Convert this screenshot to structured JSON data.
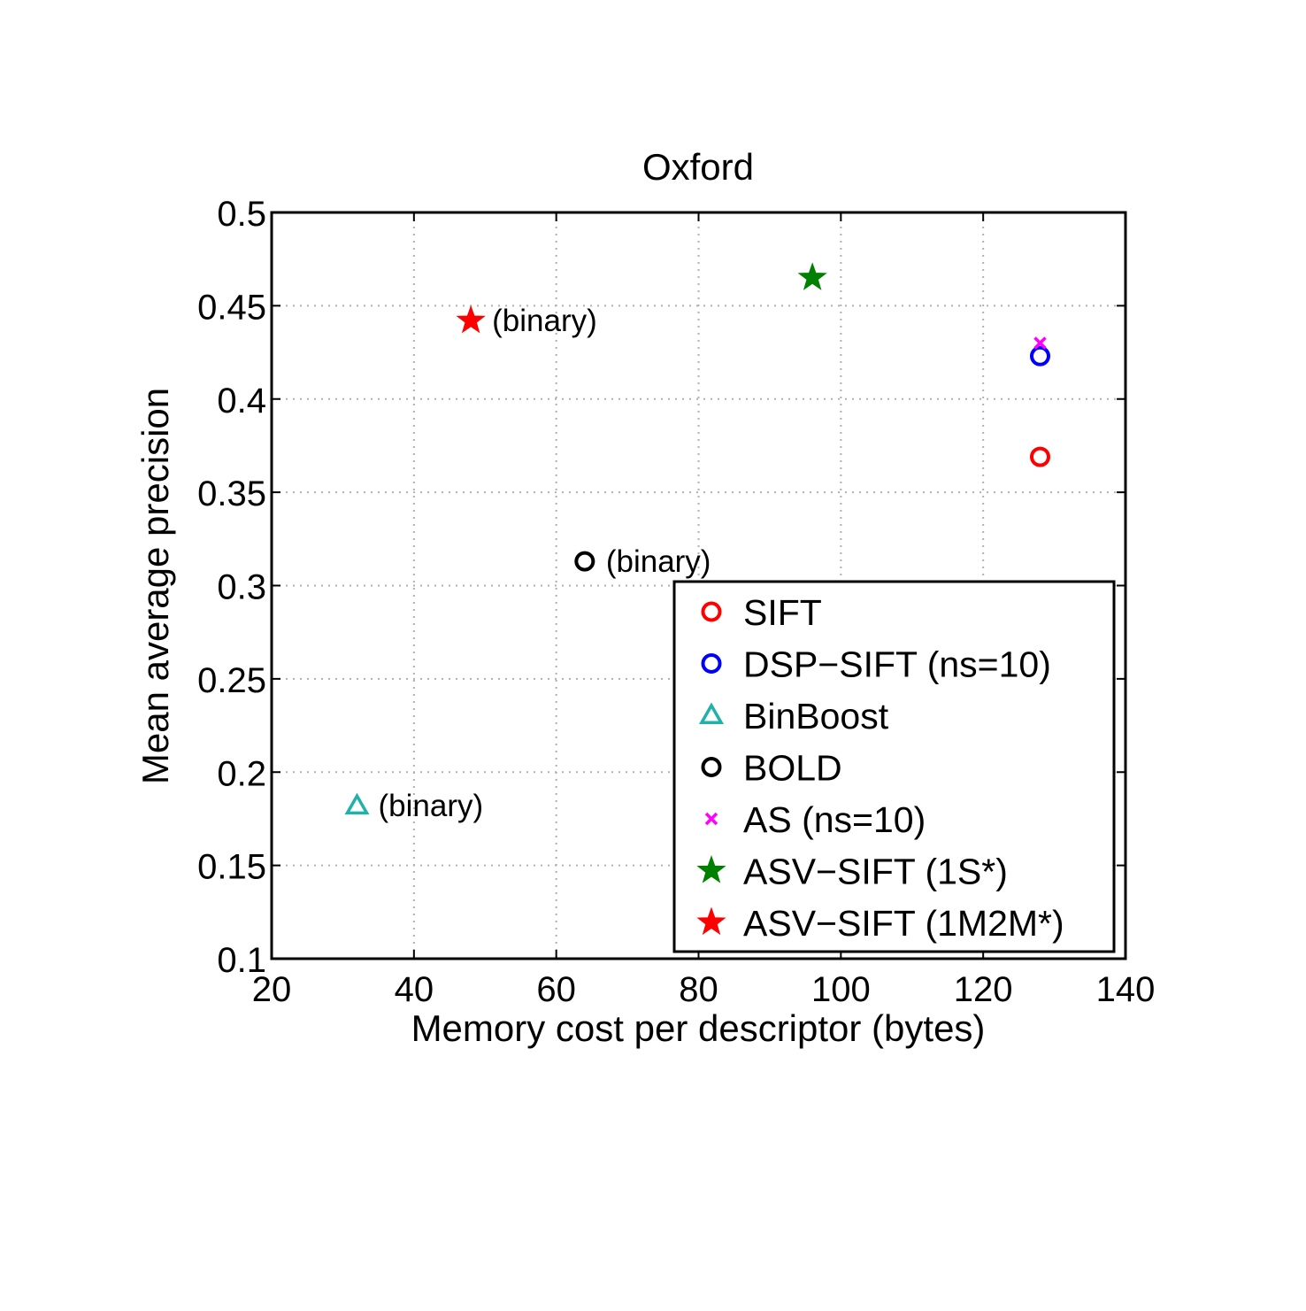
{
  "chart_data": {
    "type": "scatter",
    "title": "Oxford",
    "xlabel": "Memory cost per descriptor (bytes)",
    "ylabel": "Mean average precision",
    "xlim": [
      20,
      140
    ],
    "ylim": [
      0.1,
      0.5
    ],
    "xticks": [
      20,
      40,
      60,
      80,
      100,
      120,
      140
    ],
    "xtick_labels": [
      "20",
      "40",
      "60",
      "80",
      "100",
      "120",
      "140"
    ],
    "yticks": [
      0.1,
      0.15,
      0.2,
      0.25,
      0.3,
      0.35,
      0.4,
      0.45,
      0.5
    ],
    "ytick_labels": [
      "0.1",
      "0.15",
      "0.2",
      "0.25",
      "0.3",
      "0.35",
      "0.4",
      "0.45",
      "0.5"
    ],
    "grid": true,
    "legend_position": "bottom-right",
    "series": [
      {
        "name": "SIFT",
        "marker": "circle",
        "color": "#ff0000",
        "points": [
          {
            "x": 128,
            "y": 0.369
          }
        ]
      },
      {
        "name": "DSP−SIFT (ns=10)",
        "marker": "circle",
        "color": "#0000ff",
        "points": [
          {
            "x": 128,
            "y": 0.423
          }
        ]
      },
      {
        "name": "BinBoost",
        "marker": "triangle",
        "color": "#20b2aa",
        "points": [
          {
            "x": 32,
            "y": 0.182
          }
        ]
      },
      {
        "name": "BOLD",
        "marker": "circle",
        "color": "#000000",
        "points": [
          {
            "x": 64,
            "y": 0.313
          }
        ]
      },
      {
        "name": "AS (ns=10)",
        "marker": "x",
        "color": "#ff00ff",
        "points": [
          {
            "x": 128,
            "y": 0.43
          }
        ]
      },
      {
        "name": "ASV−SIFT (1S*)",
        "marker": "star",
        "color": "#008000",
        "points": [
          {
            "x": 96,
            "y": 0.465
          }
        ]
      },
      {
        "name": "ASV−SIFT (1M2M*)",
        "marker": "star",
        "color": "#ff0000",
        "points": [
          {
            "x": 48,
            "y": 0.442
          }
        ]
      }
    ],
    "annotations": [
      {
        "text": "(binary)",
        "x": 48,
        "y": 0.442
      },
      {
        "text": "(binary)",
        "x": 64,
        "y": 0.313
      },
      {
        "text": "(binary)",
        "x": 32,
        "y": 0.182
      }
    ]
  }
}
